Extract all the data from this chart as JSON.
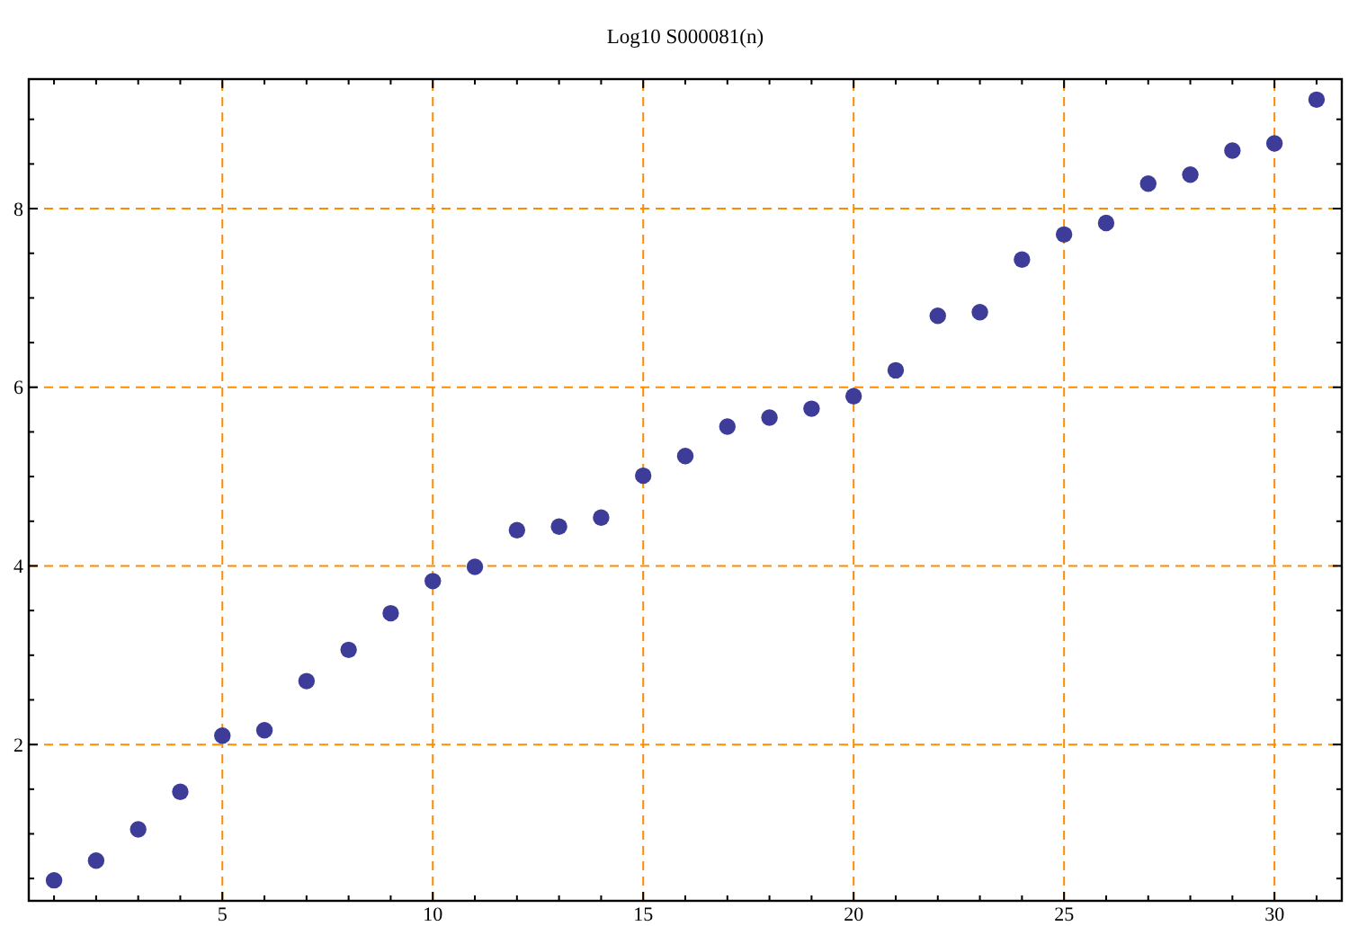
{
  "chart_data": {
    "type": "scatter",
    "title": "Log10 S000081(n)",
    "x": [
      1,
      2,
      3,
      4,
      5,
      6,
      7,
      8,
      9,
      10,
      11,
      12,
      13,
      14,
      15,
      16,
      17,
      18,
      19,
      20,
      21,
      22,
      23,
      24,
      25,
      26,
      27,
      28,
      29,
      30,
      31
    ],
    "values": [
      0.48,
      0.7,
      1.05,
      1.47,
      2.1,
      2.16,
      2.71,
      3.06,
      3.47,
      3.83,
      3.99,
      4.4,
      4.44,
      4.54,
      5.01,
      5.23,
      5.56,
      5.66,
      5.76,
      5.9,
      6.19,
      6.8,
      6.84,
      7.43,
      7.71,
      7.84,
      8.28,
      8.38,
      8.65,
      8.73,
      9.22
    ],
    "color": "#3d3d99",
    "marker": "circle",
    "xlim": [
      0.4,
      31.6
    ],
    "ylim": [
      0.25,
      9.45
    ],
    "xticks": [
      {
        "value": 1,
        "label": null
      },
      {
        "value": 2,
        "label": null
      },
      {
        "value": 3,
        "label": null
      },
      {
        "value": 4,
        "label": null
      },
      5,
      {
        "value": 6,
        "label": null
      },
      {
        "value": 7,
        "label": null
      },
      {
        "value": 8,
        "label": null
      },
      {
        "value": 9,
        "label": null
      },
      10,
      {
        "value": 11,
        "label": null
      },
      {
        "value": 12,
        "label": null
      },
      {
        "value": 13,
        "label": null
      },
      {
        "value": 14,
        "label": null
      },
      15,
      {
        "value": 16,
        "label": null
      },
      {
        "value": 17,
        "label": null
      },
      {
        "value": 18,
        "label": null
      },
      {
        "value": 19,
        "label": null
      },
      20,
      {
        "value": 21,
        "label": null
      },
      {
        "value": 22,
        "label": null
      },
      {
        "value": 23,
        "label": null
      },
      {
        "value": 24,
        "label": null
      },
      25,
      {
        "value": 26,
        "label": null
      },
      {
        "value": 27,
        "label": null
      },
      {
        "value": 28,
        "label": null
      },
      {
        "value": 29,
        "label": null
      },
      30,
      {
        "value": 31,
        "label": null
      }
    ],
    "yticks": [
      {
        "value": 0.5,
        "label": null
      },
      {
        "value": 1,
        "label": null
      },
      {
        "value": 1.5,
        "label": null
      },
      2,
      {
        "value": 2.5,
        "label": null
      },
      {
        "value": 3,
        "label": null
      },
      {
        "value": 3.5,
        "label": null
      },
      4,
      {
        "value": 4.5,
        "label": null
      },
      {
        "value": 5,
        "label": null
      },
      {
        "value": 5.5,
        "label": null
      },
      6,
      {
        "value": 6.5,
        "label": null
      },
      {
        "value": 7,
        "label": null
      },
      {
        "value": 7.5,
        "label": null
      },
      8,
      {
        "value": 8.5,
        "label": null
      },
      {
        "value": 9,
        "label": null
      }
    ],
    "grid": true
  }
}
